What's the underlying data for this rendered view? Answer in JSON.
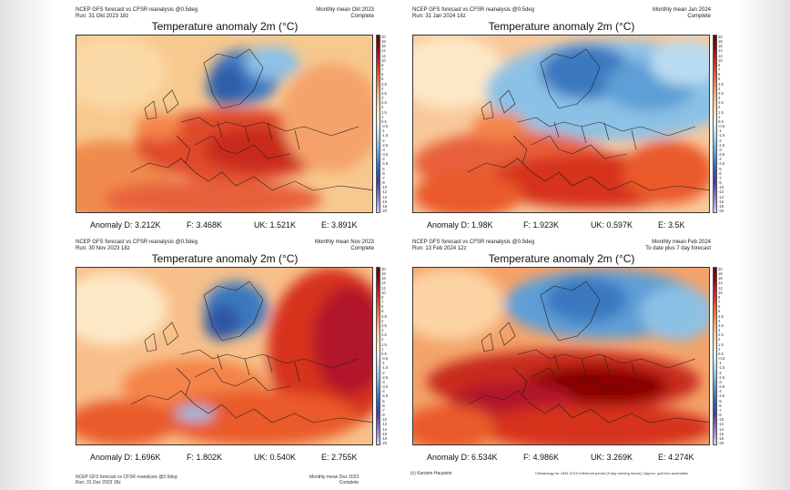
{
  "panels": [
    {
      "header_left_1": "NCEP GFS forecast vs CFSR reanalysis @0.5deg",
      "header_left_2": "Run: 31 Okt 2023 18z",
      "header_right_1": "Monthly mean Okt 2023",
      "header_right_2": "Complete",
      "title": "Temperature anomaly 2m (°C)",
      "stats": {
        "d": "Anomaly D: 3.212K",
        "f": "F: 3.468K",
        "uk": "UK: 1.521K",
        "e": "E: 3.891K"
      }
    },
    {
      "header_left_1": "NCEP GFS forecast vs CFSR reanalysis @0.5deg",
      "header_left_2": "Run: 31 Jan 2024 18z",
      "header_right_1": "Monthly mean Jan 2024",
      "header_right_2": "Complete",
      "title": "Temperature anomaly 2m (°C)",
      "stats": {
        "d": "Anomaly D: 1.98K",
        "f": "F: 1.923K",
        "uk": "UK: 0.597K",
        "e": "E: 3.5K"
      }
    },
    {
      "header_left_1": "NCEP GFS forecast vs CFSR reanalysis @0.5deg",
      "header_left_2": "Run: 30 Nov 2023 18z",
      "header_right_1": "Monthly mean Nov 2023",
      "header_right_2": "Complete",
      "title": "Temperature anomaly 2m (°C)",
      "stats": {
        "d": "Anomaly D: 1.696K",
        "f": "F: 1.802K",
        "uk": "UK: 0.540K",
        "e": "E: 2.755K"
      }
    },
    {
      "header_left_1": "NCEP GFS forecast vs CFSR reanalysis @0.5deg",
      "header_left_2": "Run: 13 Feb 2024 12z",
      "header_right_1": "Monthly mean Feb 2024",
      "header_right_2": "To date plus 7 day forecast",
      "title": "Temperature anomaly 2m (°C)",
      "stats": {
        "d": "Anomaly D: 6.534K",
        "f": "F: 4.986K",
        "uk": "UK: 3.269K",
        "e": "E: 4.274K"
      }
    }
  ],
  "colorbar": {
    "ticks": [
      "20",
      "18",
      "16",
      "14",
      "12",
      "10",
      "8",
      "7",
      "6",
      "5",
      "4.5",
      "4",
      "3.5",
      "3",
      "2.5",
      "2",
      "1.5",
      "1",
      "0.5",
      "-0.5",
      "-1",
      "-1.5",
      "-2",
      "-2.5",
      "-3",
      "-3.5",
      "-4",
      "-4.5",
      "-5",
      "-6",
      "-7",
      "-8",
      "-10",
      "-12",
      "-14",
      "-16",
      "-18",
      "-20"
    ],
    "warm_colors": [
      "#5a0000",
      "#8b0000",
      "#b2182b",
      "#d6301f",
      "#ea5a2a",
      "#f4844a",
      "#f9b27a",
      "#fcd3a2",
      "#fde8c6"
    ],
    "cold_colors": [
      "#e1f0fb",
      "#b9dcf2",
      "#8cc1e6",
      "#5d9fd6",
      "#3a78c0",
      "#2f56a6",
      "#4b3ea0",
      "#7a64c4",
      "#a994dc",
      "#d8cdf0"
    ]
  },
  "footer": {
    "left_header_1": "NCEP GFS forecast vs CFSR reanalysis @0.5deg",
    "left_header_2": "Run: 31 Dez 2023 18z",
    "center_header_1": "Monthly mean Dez 2023",
    "center_header_2": "Complete",
    "credit": "(c) Karsten Haustein",
    "note": "Climatology for 1981-2010 reference period (5 day running mean) | Approx. grid box anomalies"
  }
}
